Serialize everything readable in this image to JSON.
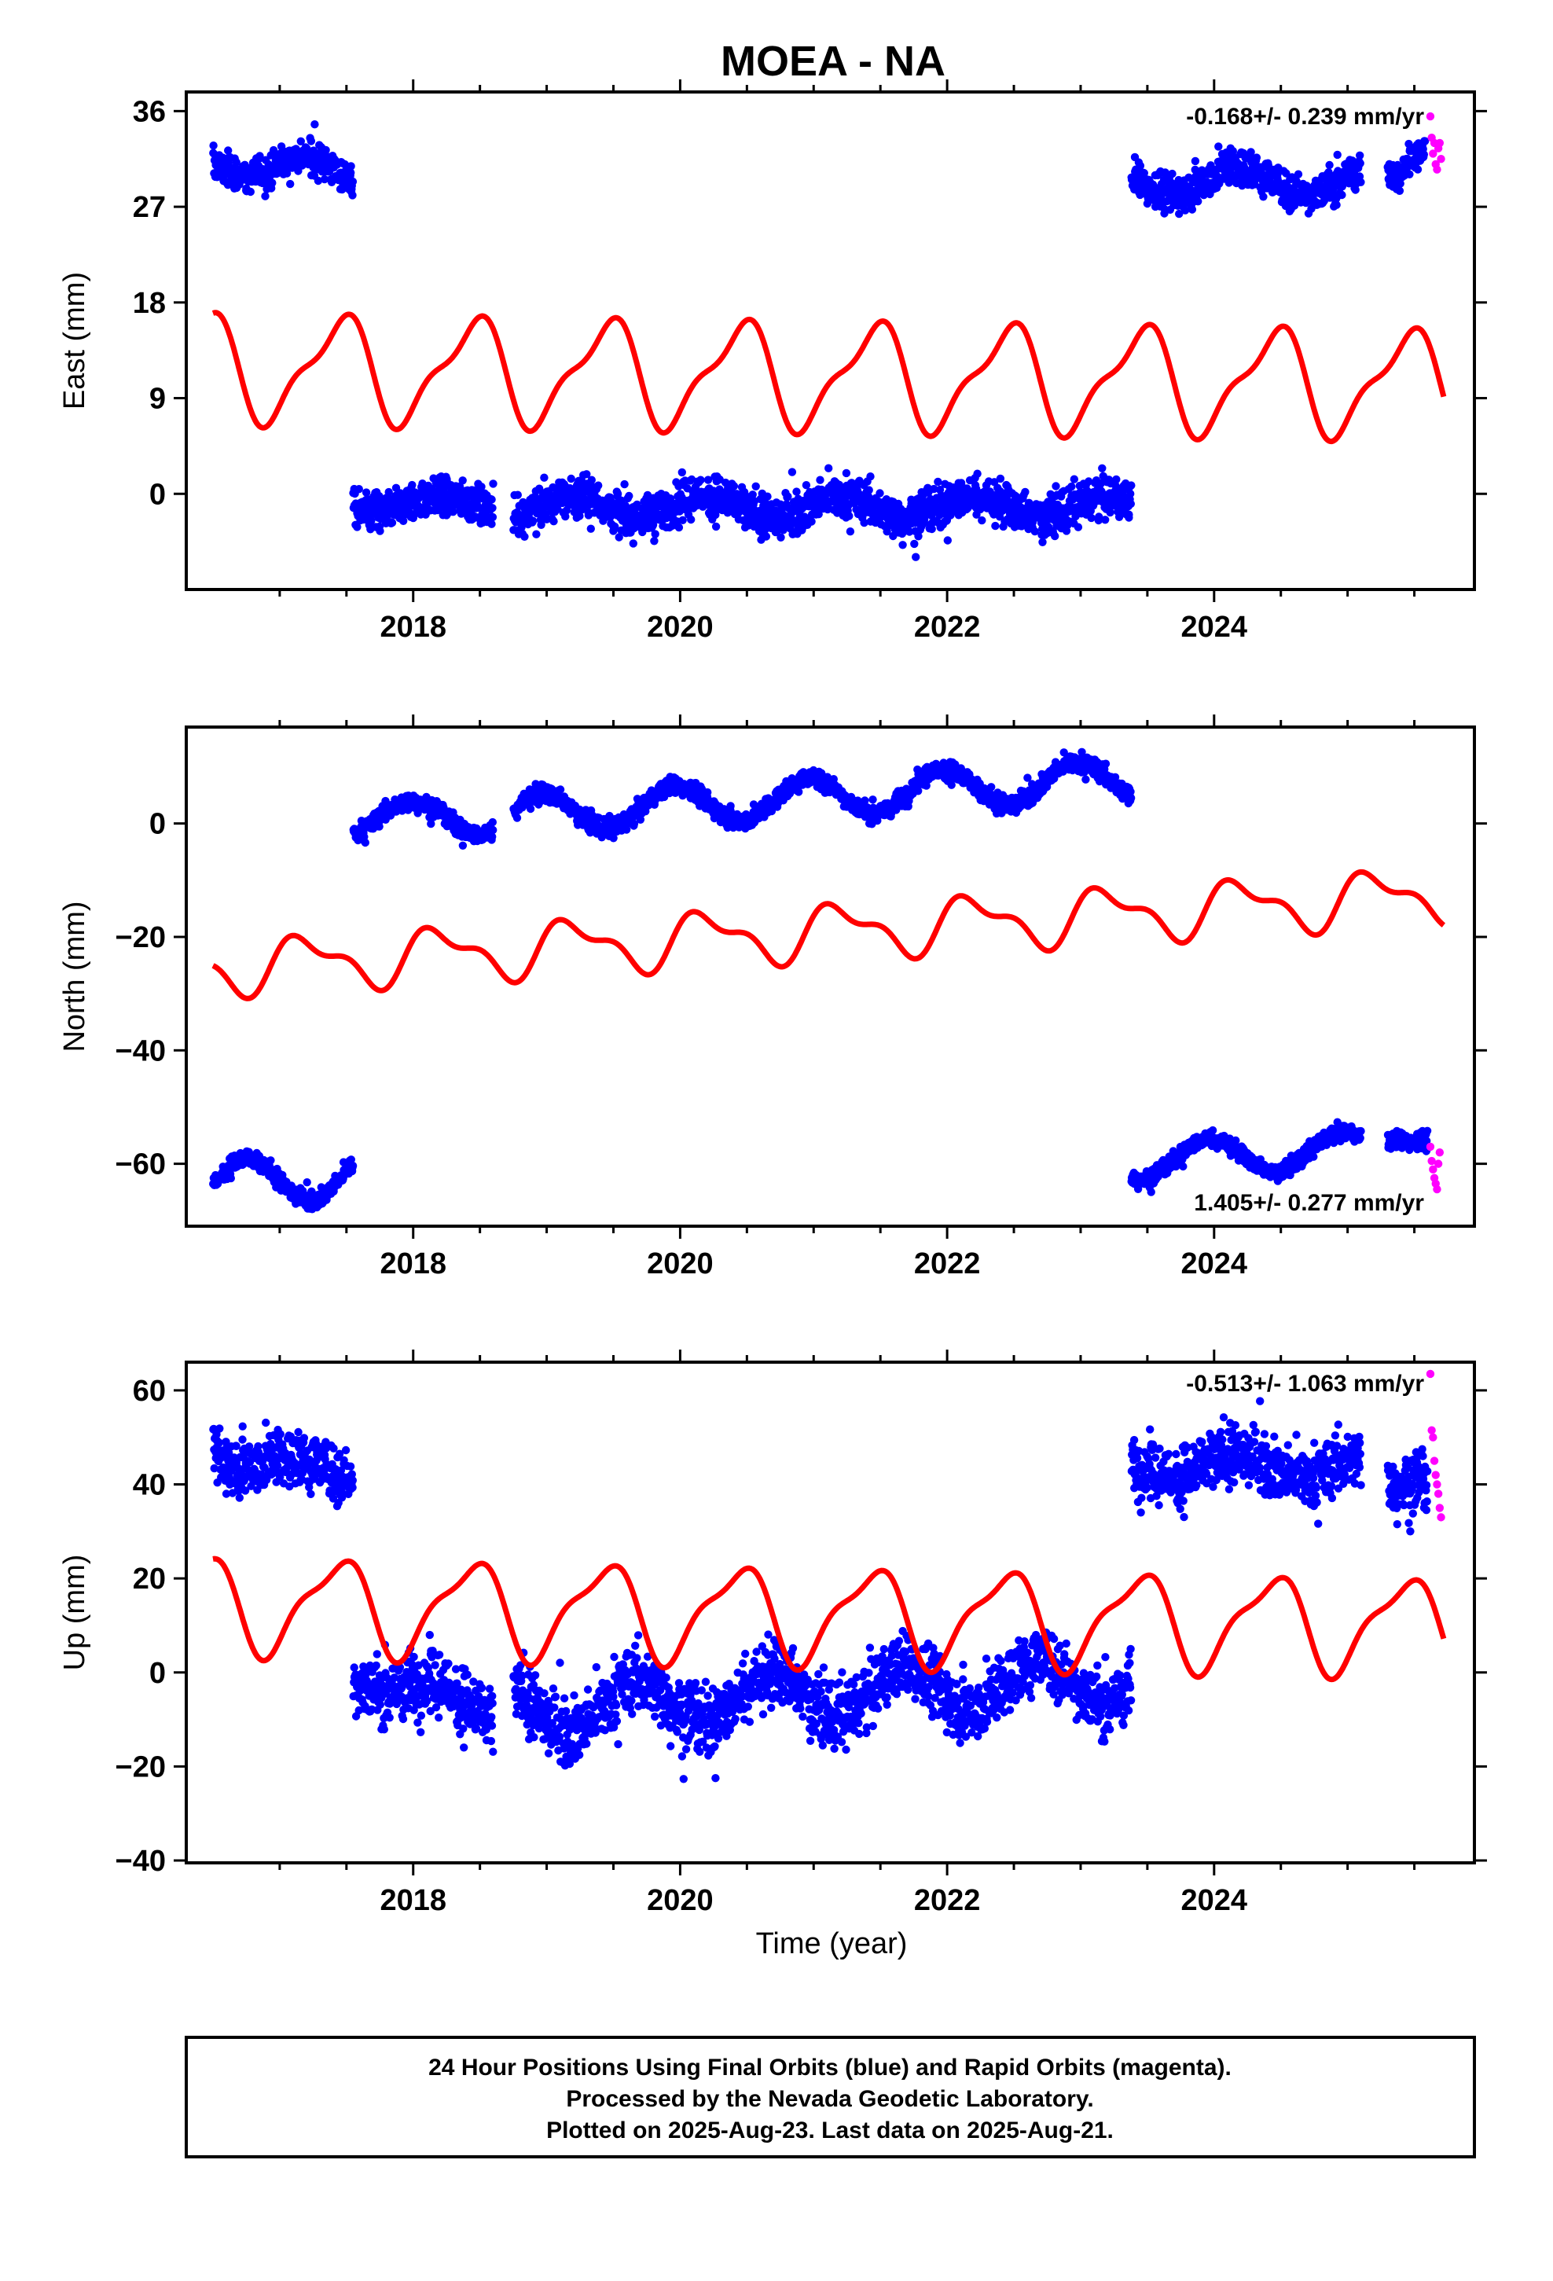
{
  "title": "MOEA - NA",
  "xlabel": "Time (year)",
  "footer": {
    "line1": "24 Hour Positions Using Final Orbits (blue) and Rapid Orbits (magenta).",
    "line2": "Processed by the Nevada Geodetic Laboratory.",
    "line3": "Plotted on 2025-Aug-23. Last data on 2025-Aug-21."
  },
  "colors": {
    "final": "#0000ff",
    "rapid": "#ff00ff",
    "model": "#ff0000",
    "axis": "#000000"
  },
  "chart_data": [
    {
      "type": "scatter",
      "name": "east",
      "ylabel": "East (mm)",
      "rate_label": "-0.168+/- 0.239 mm/yr",
      "xlim": [
        2016.3,
        2025.95
      ],
      "ylim": [
        -9,
        37.8
      ],
      "xticks": [
        2018,
        2020,
        2022,
        2024
      ],
      "yticks": [
        0,
        9,
        18,
        27,
        36
      ],
      "segments": [
        {
          "x0": 2016.5,
          "x1": 2017.55,
          "center": 31.5,
          "trend": -1.5,
          "amp": 1.2,
          "phase": 0.2,
          "scatter": 1.1,
          "density": 330,
          "min": 28,
          "max": 37
        },
        {
          "x0": 2017.55,
          "x1": 2018.6,
          "center": -1.0,
          "trend": 0,
          "amp": 0.8,
          "phase": 0.2,
          "scatter": 1.3,
          "density": 330,
          "min": -6.5,
          "max": 4.5
        },
        {
          "x0": 2018.75,
          "x1": 2023.38,
          "center": -1.2,
          "trend": 0,
          "amp": 1.0,
          "phase": 0.3,
          "scatter": 1.4,
          "density": 330,
          "min": -7.5,
          "max": 4.8
        },
        {
          "x0": 2023.38,
          "x1": 2025.1,
          "center": 29.5,
          "trend": 0,
          "amp": 1.3,
          "phase": 0.4,
          "scatter": 1.3,
          "density": 330,
          "min": 24,
          "max": 34
        },
        {
          "x0": 2025.3,
          "x1": 2025.58,
          "center": 29.5,
          "trend": 10,
          "amp": 0,
          "phase": 0,
          "scatter": 0.9,
          "density": 330,
          "min": 26.5,
          "max": 34
        }
      ],
      "rapid": [
        [
          2025.62,
          35.5
        ],
        [
          2025.63,
          33.5
        ],
        [
          2025.64,
          32.0
        ],
        [
          2025.65,
          33.0
        ],
        [
          2025.66,
          31.0
        ],
        [
          2025.67,
          30.5
        ],
        [
          2025.68,
          32.5
        ],
        [
          2025.69,
          33.0
        ],
        [
          2025.7,
          31.5
        ]
      ],
      "model": {
        "offset": 11.8,
        "trend": -0.16,
        "a1": 4.6,
        "p1": -1.2,
        "a2": 1.6,
        "p2": 0.6,
        "x0": 2016.5,
        "x1": 2025.72
      }
    },
    {
      "type": "scatter",
      "name": "north",
      "ylabel": "North (mm)",
      "rate_label": "1.405+/- 0.277 mm/yr",
      "xlim": [
        2016.3,
        2025.95
      ],
      "ylim": [
        -71,
        17
      ],
      "xticks": [
        2018,
        2020,
        2022,
        2024
      ],
      "yticks": [
        0,
        -20,
        -40,
        -60
      ],
      "segments": [
        {
          "x0": 2016.5,
          "x1": 2017.55,
          "center": -64,
          "trend": 2.5,
          "amp": 4.2,
          "phase": 3.2,
          "scatter": 1.1,
          "density": 330,
          "min": -70,
          "max": -55
        },
        {
          "x0": 2017.55,
          "x1": 2018.6,
          "center": 1.0,
          "trend": 0,
          "amp": 3.0,
          "phase": 1.6,
          "scatter": 1.1,
          "density": 330,
          "min": -6,
          "max": 10
        },
        {
          "x0": 2018.75,
          "x1": 2023.38,
          "center": 1.5,
          "trend": 1.4,
          "amp": 3.4,
          "phase": 1.8,
          "scatter": 1.2,
          "density": 330,
          "min": -8,
          "max": 15
        },
        {
          "x0": 2023.38,
          "x1": 2025.1,
          "center": -59.5,
          "trend": 1.2,
          "amp": 3.2,
          "phase": 1.8,
          "scatter": 1.0,
          "density": 330,
          "min": -66,
          "max": -51
        },
        {
          "x0": 2025.3,
          "x1": 2025.6,
          "center": -56,
          "trend": 0,
          "amp": 0,
          "phase": 0,
          "scatter": 1.2,
          "density": 330,
          "min": -60,
          "max": -52
        }
      ],
      "rapid": [
        [
          2025.62,
          -57.0
        ],
        [
          2025.63,
          -59.5
        ],
        [
          2025.64,
          -61.0
        ],
        [
          2025.65,
          -62.5
        ],
        [
          2025.66,
          -63.5
        ],
        [
          2025.67,
          -64.5
        ],
        [
          2025.68,
          -60.0
        ],
        [
          2025.69,
          -58.0
        ]
      ],
      "model": {
        "offset": -25.5,
        "trend": 1.4,
        "a1": 4.2,
        "p1": 0.3,
        "a2": 2.0,
        "p2": 1.0,
        "x0": 2016.5,
        "x1": 2025.72
      }
    },
    {
      "type": "scatter",
      "name": "up",
      "ylabel": "Up (mm)",
      "rate_label": "-0.513+/- 1.063 mm/yr",
      "xlim": [
        2016.3,
        2025.95
      ],
      "ylim": [
        -40.5,
        66
      ],
      "xticks": [
        2018,
        2020,
        2022,
        2024
      ],
      "yticks": [
        60,
        40,
        20,
        0,
        -20,
        -40
      ],
      "segments": [
        {
          "x0": 2016.5,
          "x1": 2017.55,
          "center": 47,
          "trend": -5,
          "amp": 2.0,
          "phase": 0.5,
          "scatter": 4.5,
          "density": 330,
          "min": 30,
          "max": 64
        },
        {
          "x0": 2017.55,
          "x1": 2018.6,
          "center": 0,
          "trend": -8,
          "amp": 2.5,
          "phase": 0.5,
          "scatter": 5.0,
          "density": 330,
          "min": -24,
          "max": 26
        },
        {
          "x0": 2018.75,
          "x1": 2023.38,
          "center": -8,
          "trend": 1.5,
          "amp": 5.0,
          "phase": 3.6,
          "scatter": 5.0,
          "density": 330,
          "min": -39,
          "max": 26
        },
        {
          "x0": 2023.38,
          "x1": 2025.1,
          "center": 44,
          "trend": 0,
          "amp": 2.5,
          "phase": 0.5,
          "scatter": 4.5,
          "density": 330,
          "min": 28,
          "max": 60
        },
        {
          "x0": 2025.3,
          "x1": 2025.6,
          "center": 40,
          "trend": 0,
          "amp": 0,
          "phase": 0,
          "scatter": 4.5,
          "density": 330,
          "min": 30,
          "max": 50
        }
      ],
      "rapid": [
        [
          2025.62,
          63.5
        ],
        [
          2025.63,
          51.5
        ],
        [
          2025.64,
          50.0
        ],
        [
          2025.65,
          45.0
        ],
        [
          2025.66,
          42.0
        ],
        [
          2025.67,
          40.0
        ],
        [
          2025.68,
          38.0
        ],
        [
          2025.69,
          35.0
        ],
        [
          2025.7,
          33.0
        ]
      ],
      "model": {
        "offset": 14.5,
        "trend": -0.5,
        "a1": 9.5,
        "p1": -1.1,
        "a2": 3.0,
        "p2": 0.4,
        "x0": 2016.5,
        "x1": 2025.72
      }
    }
  ]
}
